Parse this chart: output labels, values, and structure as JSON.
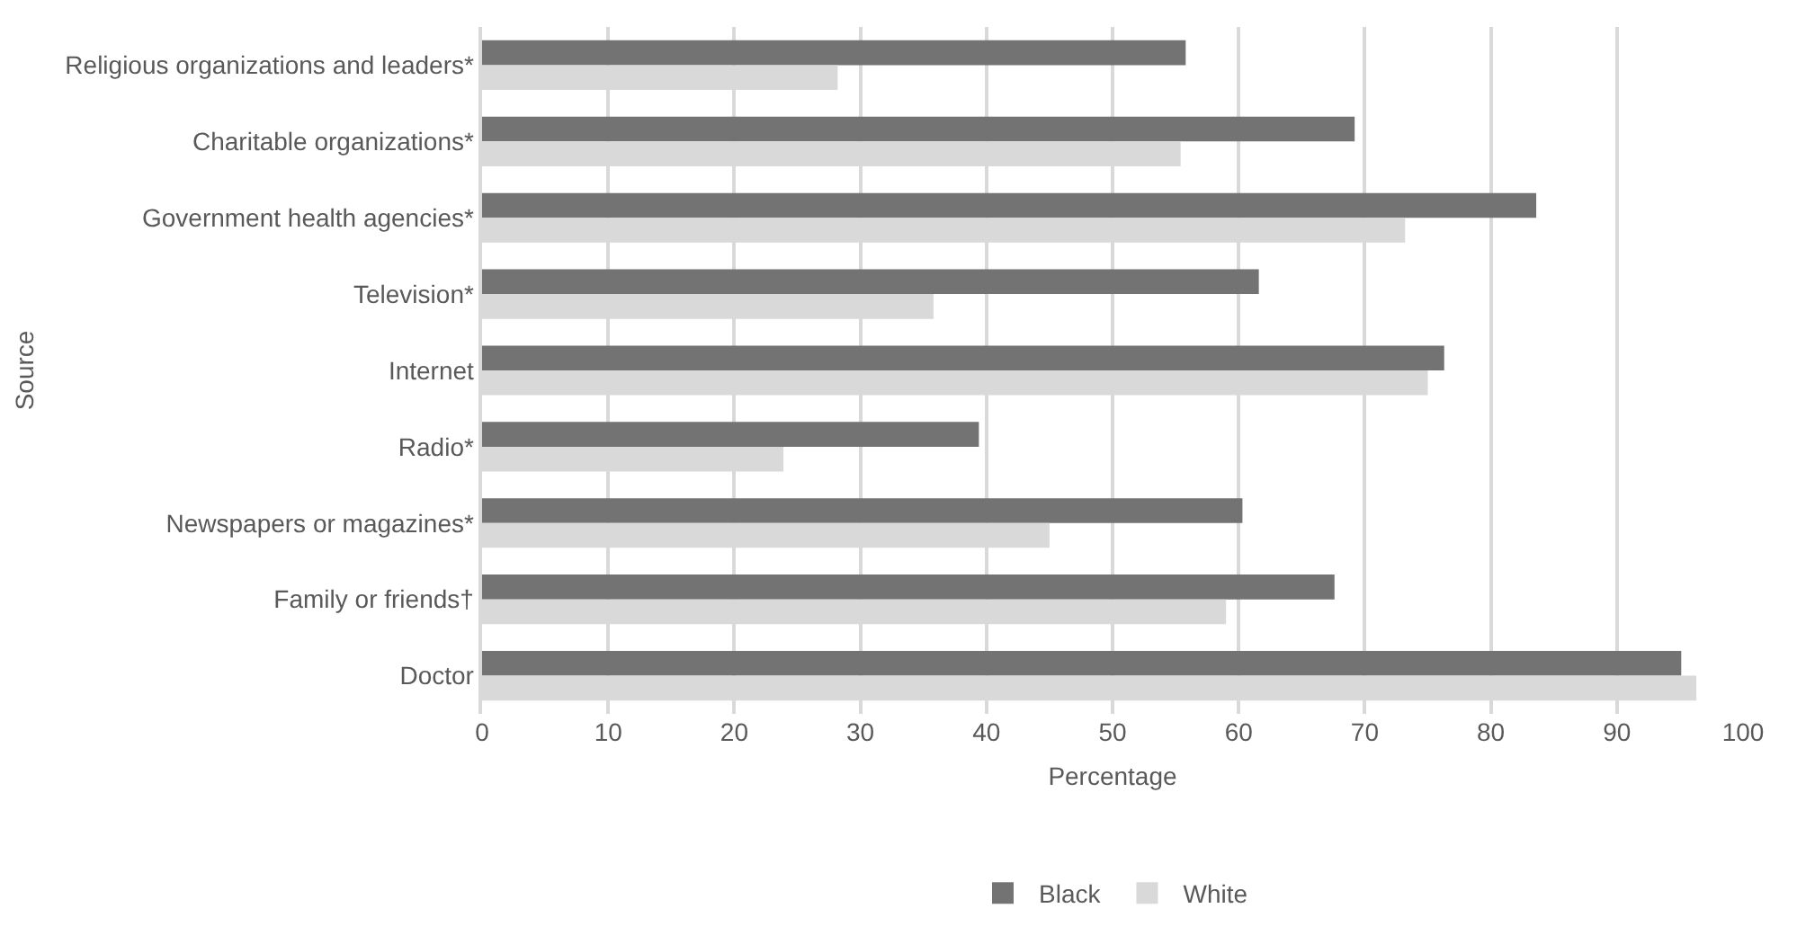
{
  "chart_data": {
    "type": "bar",
    "orientation": "horizontal",
    "xlabel": "Percentage",
    "ylabel": "Source",
    "categories": [
      "Religious organizations and leaders*",
      "Charitable organizations*",
      "Government health agencies*",
      "Television*",
      "Internet",
      "Radio*",
      "Newspapers or magazines*",
      "Family or friends†",
      "Doctor"
    ],
    "series": [
      {
        "name": "Black",
        "color": "#737373",
        "values": [
          55.8,
          69.2,
          83.6,
          61.6,
          76.3,
          39.4,
          60.3,
          67.6,
          95.1
        ]
      },
      {
        "name": "White",
        "color": "#d9d9d9",
        "values": [
          28.2,
          55.4,
          73.2,
          35.8,
          75.0,
          23.9,
          45.0,
          59.0,
          96.3
        ]
      }
    ],
    "xlim": [
      0,
      100
    ],
    "xticks": [
      0,
      10,
      20,
      30,
      40,
      50,
      60,
      70,
      80,
      90,
      100
    ],
    "grid": "x",
    "legend": "bottom"
  }
}
